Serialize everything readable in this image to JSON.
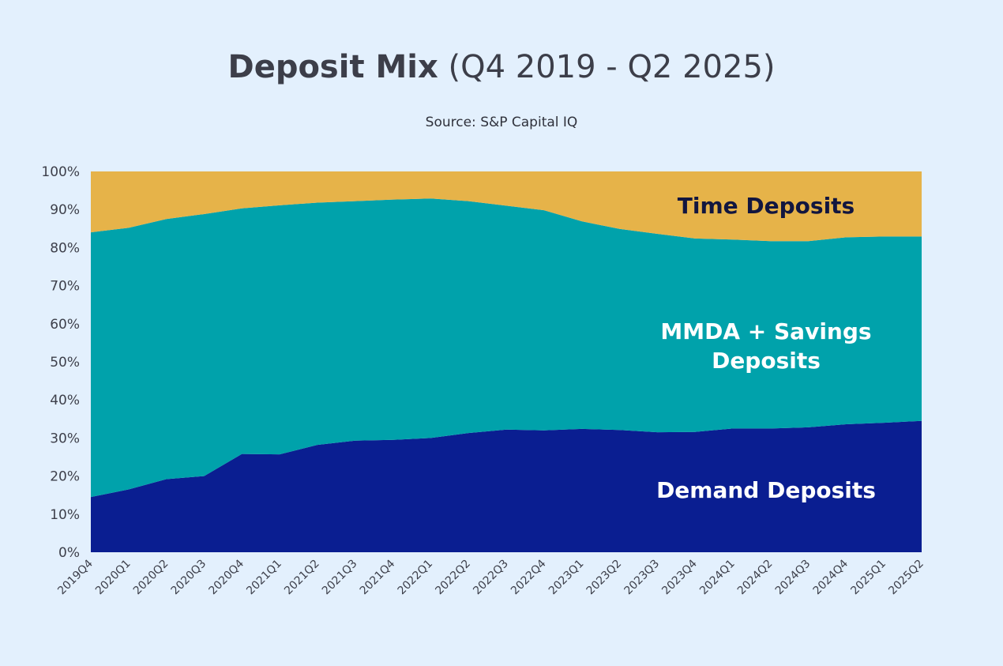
{
  "title": {
    "bold": "Deposit Mix",
    "light": "(Q4 2019 - Q2 2025)"
  },
  "subtitle": "Source: S&P Capital IQ",
  "colors": {
    "background": "#e3f0fd",
    "demand": "#0a1e91",
    "mmda": "#00a2ab",
    "time": "#e6b349",
    "time_label": "#12163f",
    "white_label": "#ffffff"
  },
  "chart_data": {
    "type": "area",
    "stacked": true,
    "x": [
      "2019Q4",
      "2020Q1",
      "2020Q2",
      "2020Q3",
      "2020Q4",
      "2021Q1",
      "2021Q2",
      "2021Q3",
      "2021Q4",
      "2022Q1",
      "2022Q2",
      "2022Q3",
      "2022Q4",
      "2023Q1",
      "2023Q2",
      "2023Q3",
      "2023Q4",
      "2024Q1",
      "2024Q2",
      "2024Q3",
      "2024Q4",
      "2025Q1",
      "2025Q2"
    ],
    "ylim": [
      0,
      100
    ],
    "y_ticks": [
      "0%",
      "10%",
      "20%",
      "30%",
      "40%",
      "50%",
      "60%",
      "70%",
      "80%",
      "90%",
      "100%"
    ],
    "grid": false,
    "legend": "none (inline area labels)",
    "series": [
      {
        "name": "Demand Deposits",
        "label_lines": [
          "Demand Deposits"
        ],
        "values": [
          14.5,
          16.5,
          19.2,
          20,
          25.8,
          25.7,
          28.2,
          29.3,
          29.5,
          30,
          31.3,
          32.2,
          32,
          32.4,
          32.1,
          31.5,
          31.6,
          32.5,
          32.5,
          32.8,
          33.6,
          34,
          34.5
        ]
      },
      {
        "name": "MMDA + Savings Deposits",
        "label_lines": [
          "MMDA + Savings",
          "Deposits"
        ],
        "values": [
          69.5,
          68.7,
          68.3,
          68.8,
          64.5,
          65.4,
          63.6,
          62.9,
          63.1,
          62.9,
          60.9,
          58.8,
          57.8,
          54.5,
          52.8,
          52.1,
          50.8,
          49.6,
          49.2,
          48.9,
          49.1,
          48.9,
          48.4
        ]
      },
      {
        "name": "Time Deposits",
        "label_lines": [
          "Time Deposits"
        ],
        "values": [
          16,
          14.8,
          12.5,
          11.2,
          9.7,
          8.9,
          8.2,
          7.8,
          7.4,
          7.1,
          7.8,
          9,
          10.2,
          13.1,
          15.1,
          16.4,
          17.6,
          17.9,
          18.3,
          18.3,
          17.3,
          17.1,
          17.1
        ]
      }
    ]
  }
}
